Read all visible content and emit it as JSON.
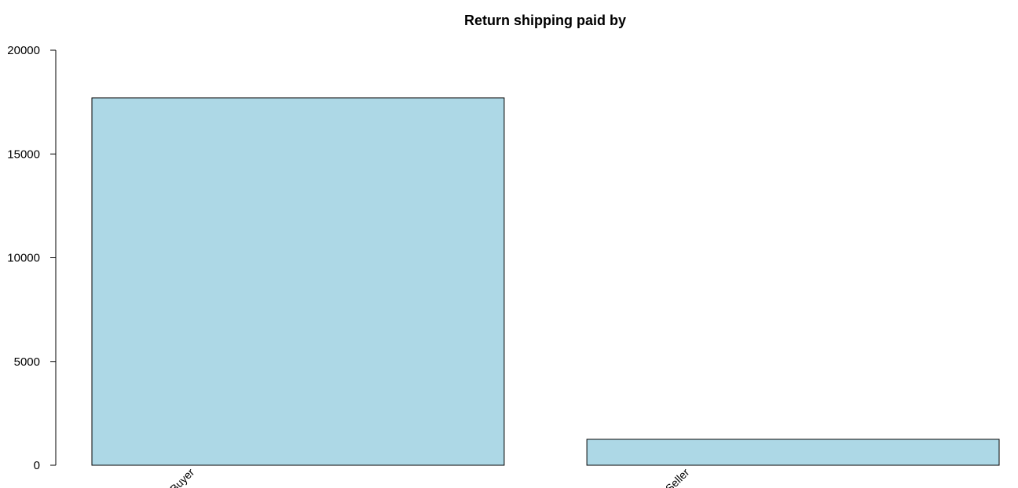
{
  "chart_data": {
    "type": "bar",
    "title": "Return shipping paid by",
    "xlabel": "",
    "ylabel": "",
    "categories": [
      "Buyer",
      "Seller"
    ],
    "values": [
      17700,
      1250
    ],
    "ylim": [
      0,
      20000
    ],
    "yticks": [
      0,
      5000,
      10000,
      15000,
      20000
    ],
    "grid": false,
    "bar_color": "#add8e6",
    "bar_border_color": "#000000"
  }
}
